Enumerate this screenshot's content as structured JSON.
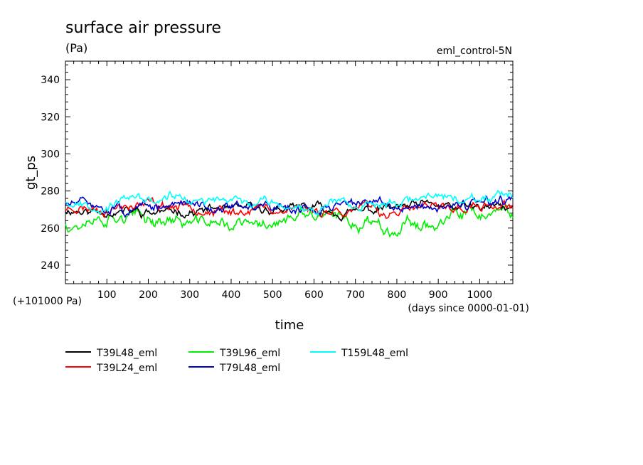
{
  "chart_data": {
    "type": "line",
    "title": "surface air pressure",
    "units": "(Pa)",
    "experiment": "eml_control-5N",
    "ylabel": "gt_ps",
    "xlabel": "time",
    "y_offset_label": "(+101000 Pa)",
    "x_units_label": "(days since 0000-01-01)",
    "xlim": [
      0,
      1080
    ],
    "ylim": [
      230,
      350
    ],
    "xticks": [
      100,
      200,
      300,
      400,
      500,
      600,
      700,
      800,
      900,
      1000
    ],
    "yticks": [
      240,
      260,
      280,
      300,
      320,
      340
    ],
    "series": [
      {
        "name": "T39L48_eml",
        "color": "#000000",
        "mean": 270,
        "amp": 2.2,
        "seed": 11
      },
      {
        "name": "T39L24_eml",
        "color": "#ff0000",
        "mean": 270.5,
        "amp": 2.4,
        "seed": 23
      },
      {
        "name": "T39L96_eml",
        "color": "#00ee00",
        "mean": 263,
        "amp": 3.2,
        "seed": 37
      },
      {
        "name": "T79L48_eml",
        "color": "#0000cc",
        "mean": 272.5,
        "amp": 2.4,
        "seed": 51
      },
      {
        "name": "T159L48_eml",
        "color": "#00ffff",
        "mean": 274.5,
        "amp": 2.2,
        "seed": 67
      }
    ],
    "x_samples": 361
  }
}
